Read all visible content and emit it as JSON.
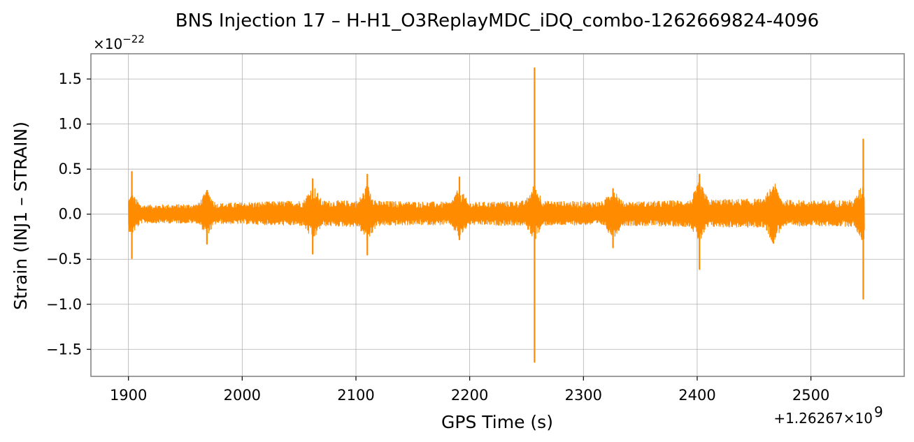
{
  "chart_data": {
    "type": "line",
    "title": "BNS Injection 17 – H-H1_O3ReplayMDC_iDQ_combo-1262669824-4096",
    "xlabel": "GPS Time (s)",
    "ylabel": "Strain (INJ1 – STRAIN)",
    "x_offset_label": "+1.26267×10",
    "x_offset_exp": "9",
    "y_scale_label": "×10",
    "y_scale_exp": "−22",
    "xlim": [
      1867,
      2582
    ],
    "ylim": [
      -1.8,
      1.78
    ],
    "grid": true,
    "x_ticks": [
      1900,
      2000,
      2100,
      2200,
      2300,
      2400,
      2500
    ],
    "x_tick_labels": [
      "1900",
      "2000",
      "2100",
      "2200",
      "2300",
      "2400",
      "2500"
    ],
    "y_ticks": [
      -1.5,
      -1.0,
      -0.5,
      0.0,
      0.5,
      1.0,
      1.5
    ],
    "y_tick_labels": [
      "−1.5",
      "−1.0",
      "−0.5",
      "0.0",
      "0.5",
      "1.0",
      "1.5"
    ],
    "series": [
      {
        "color": "#ff8c00",
        "x_range": [
          1900,
          2547
        ],
        "baseline_envelope": {
          "x": [
            1900,
            1950,
            2000,
            2050,
            2100,
            2150,
            2200,
            2250,
            2300,
            2350,
            2400,
            2450,
            2500,
            2547
          ],
          "upper": [
            0.1,
            0.11,
            0.13,
            0.15,
            0.15,
            0.14,
            0.13,
            0.15,
            0.14,
            0.14,
            0.16,
            0.17,
            0.15,
            0.16
          ],
          "lower": [
            -0.1,
            -0.1,
            -0.11,
            -0.13,
            -0.14,
            -0.12,
            -0.12,
            -0.13,
            -0.12,
            -0.13,
            -0.14,
            -0.15,
            -0.13,
            -0.14
          ]
        },
        "glitches": [
          {
            "x": 1903,
            "max": 0.47,
            "min": -0.49
          },
          {
            "x": 1969,
            "max": 0.26,
            "min": -0.33
          },
          {
            "x": 2062,
            "max": 0.39,
            "min": -0.44
          },
          {
            "x": 2110,
            "max": 0.44,
            "min": -0.45
          },
          {
            "x": 2191,
            "max": 0.41,
            "min": -0.28
          },
          {
            "x": 2257,
            "max": 1.62,
            "min": -1.64
          },
          {
            "x": 2326,
            "max": 0.28,
            "min": -0.37
          },
          {
            "x": 2402,
            "max": 0.44,
            "min": -0.61
          },
          {
            "x": 2467,
            "max": 0.29,
            "min": -0.32
          },
          {
            "x": 2546,
            "max": 0.83,
            "min": -0.94
          }
        ]
      }
    ]
  }
}
